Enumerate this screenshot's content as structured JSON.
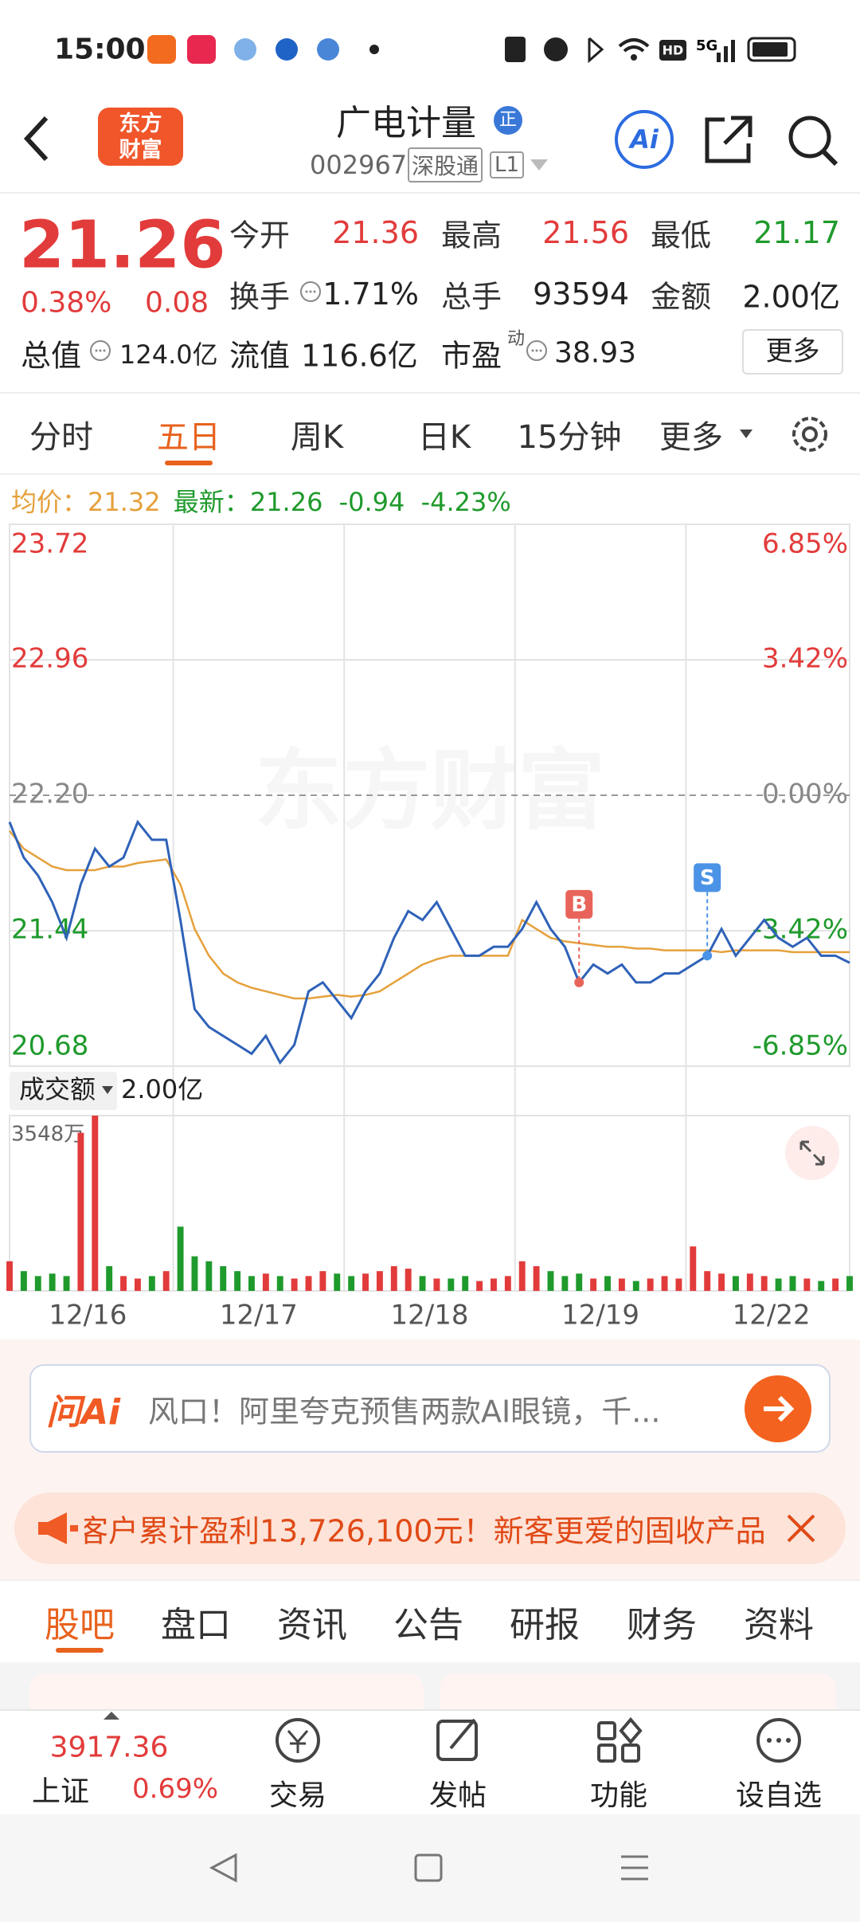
{
  "status_bar": {
    "time": "15:00",
    "network_labels": [
      "HD",
      "5G"
    ]
  },
  "header": {
    "logo_text": [
      "东方",
      "财富"
    ],
    "title": "广电计量",
    "badge": "正",
    "code": "002967",
    "tag": "深股通",
    "level": "L1",
    "ai": "Ai"
  },
  "quote": {
    "price": "21.26",
    "change_pct": "0.38%",
    "change": "0.08",
    "fields": [
      {
        "label": "今开",
        "value": "21.36"
      },
      {
        "label": "最高",
        "value": "21.56"
      },
      {
        "label": "最低",
        "value": "21.17"
      },
      {
        "label": "换手",
        "value": "1.71%"
      },
      {
        "label": "总手",
        "value": "93594"
      },
      {
        "label": "金额",
        "value": "2.00亿"
      },
      {
        "label": "总值",
        "value": "124.0亿"
      },
      {
        "label": "流值",
        "value": "116.6亿"
      },
      {
        "label": "市盈",
        "sup": "动",
        "value": "38.93"
      }
    ],
    "more_button": "更多"
  },
  "tabs": {
    "items": [
      "分时",
      "五日",
      "周K",
      "日K",
      "15分钟",
      "更多"
    ],
    "active": 1
  },
  "info": {
    "avg": "21.32",
    "latest": "21.26",
    "change": "-0.94",
    "change_pct": "-4.23%"
  },
  "chart_data": [
    {
      "type": "line",
      "watermark": "东方财富",
      "x": [
        0,
        1,
        2,
        3,
        4,
        5,
        6,
        7,
        8,
        9,
        10,
        11,
        12,
        13,
        14,
        15,
        16,
        17,
        18,
        19,
        20,
        21,
        22,
        23,
        24,
        25,
        26,
        27,
        28,
        29,
        30,
        31,
        32,
        33,
        34,
        35,
        36,
        37,
        38,
        39,
        40,
        41,
        42,
        43,
        44,
        45,
        46,
        47,
        48,
        49,
        50,
        51,
        52,
        53,
        54,
        55,
        56,
        57,
        58,
        59
      ],
      "xlim": [
        0,
        59
      ],
      "xticks": [
        {
          "value": 5.5,
          "label": "12/16"
        },
        {
          "value": 17.5,
          "label": "12/17"
        },
        {
          "value": 29.5,
          "label": "12/18"
        },
        {
          "value": 41.5,
          "label": "12/19"
        },
        {
          "value": 53.5,
          "label": "12/22"
        }
      ],
      "ylim": [
        20.68,
        23.72
      ],
      "yticks": [
        20.68,
        21.44,
        {
          "value": 22.2,
          "label": "22.20"
        },
        22.96,
        23.72
      ],
      "y2lim": [
        -6.85,
        6.85
      ],
      "y2ticks": [
        {
          "value": -6.85,
          "label": "-6.85%"
        },
        {
          "value": -3.42,
          "label": "-3.42%"
        },
        {
          "value": 0,
          "label": "0.00%"
        },
        {
          "value": 3.42,
          "label": "3.42%"
        },
        {
          "value": 6.85,
          "label": "6.85%"
        }
      ],
      "series": [
        {
          "name": "最新：",
          "color": "#2f62b8",
          "values": [
            22.05,
            21.85,
            21.75,
            21.6,
            21.4,
            21.7,
            21.9,
            21.8,
            21.85,
            22.05,
            21.95,
            21.95,
            21.5,
            21.0,
            20.9,
            20.85,
            20.8,
            20.75,
            20.85,
            20.7,
            20.8,
            21.1,
            21.15,
            21.05,
            20.95,
            21.1,
            21.2,
            21.4,
            21.55,
            21.5,
            21.6,
            21.45,
            21.3,
            21.3,
            21.35,
            21.35,
            21.45,
            21.6,
            21.45,
            21.35,
            21.15,
            21.25,
            21.2,
            21.25,
            21.15,
            21.15,
            21.2,
            21.2,
            21.25,
            21.3,
            21.45,
            21.3,
            21.4,
            21.5,
            21.4,
            21.35,
            21.4,
            21.3,
            21.3,
            21.26
          ]
        },
        {
          "name": "均价：",
          "color": "#e5a13c",
          "values": [
            22.0,
            21.9,
            21.85,
            21.8,
            21.78,
            21.78,
            21.78,
            21.8,
            21.8,
            21.82,
            21.83,
            21.84,
            21.7,
            21.45,
            21.3,
            21.2,
            21.15,
            21.12,
            21.1,
            21.08,
            21.06,
            21.06,
            21.07,
            21.08,
            21.07,
            21.08,
            21.1,
            21.15,
            21.2,
            21.25,
            21.28,
            21.3,
            21.3,
            21.3,
            21.3,
            21.3,
            21.5,
            21.45,
            21.4,
            21.38,
            21.37,
            21.36,
            21.35,
            21.35,
            21.34,
            21.34,
            21.33,
            21.33,
            21.33,
            21.33,
            21.32,
            21.33,
            21.33,
            21.33,
            21.33,
            21.32,
            21.32,
            21.32,
            21.32,
            21.32
          ]
        }
      ],
      "markers": [
        {
          "label": "B",
          "x": 40,
          "value": 21.15,
          "color": "#e8645a"
        },
        {
          "label": "S",
          "x": 49,
          "value": 21.3,
          "color": "#4b93e6"
        }
      ]
    },
    {
      "type": "bar",
      "label": "成交额",
      "total": "2.00亿",
      "up_color": "#e23b3b",
      "down_color": "#1f9a2c",
      "x": [
        0,
        1,
        2,
        3,
        4,
        5,
        6,
        7,
        8,
        9,
        10,
        11,
        12,
        13,
        14,
        15,
        16,
        17,
        18,
        19,
        20,
        21,
        22,
        23,
        24,
        25,
        26,
        27,
        28,
        29,
        30,
        31,
        32,
        33,
        34,
        35,
        36,
        37,
        38,
        39,
        40,
        41,
        42,
        43,
        44,
        45,
        46,
        47,
        48,
        49,
        50,
        51,
        52,
        53,
        54,
        55,
        56,
        57,
        58,
        59
      ],
      "xlim": [
        0,
        59
      ],
      "values": [
        600,
        400,
        300,
        350,
        300,
        3200,
        3548,
        500,
        300,
        250,
        300,
        400,
        1300,
        700,
        600,
        500,
        400,
        300,
        350,
        300,
        250,
        300,
        400,
        350,
        300,
        350,
        400,
        500,
        450,
        300,
        250,
        250,
        300,
        200,
        250,
        300,
        600,
        500,
        400,
        300,
        350,
        250,
        300,
        250,
        200,
        250,
        300,
        250,
        900,
        400,
        350,
        300,
        350,
        300,
        250,
        300,
        250,
        200,
        250,
        300
      ],
      "ylim": [
        0,
        3548
      ],
      "yticks": [
        {
          "value": 3548,
          "label": "3548万"
        }
      ]
    }
  ],
  "ai_search": {
    "logo": "问Ai",
    "text": "风口！阿里夸克预售两款AI眼镜，千..."
  },
  "banner": {
    "text": "客户累计盈利13,726,100元！新客更爱的固收产品"
  },
  "bottom_tabs": {
    "items": [
      "股吧",
      "盘口",
      "资讯",
      "公告",
      "研报",
      "财务",
      "资料"
    ],
    "active": 0
  },
  "bottom_nav": {
    "index_value": "3917.36",
    "index_name": "上证",
    "index_change": "0.69%",
    "items": [
      "交易",
      "发帖",
      "功能",
      "设自选"
    ]
  }
}
